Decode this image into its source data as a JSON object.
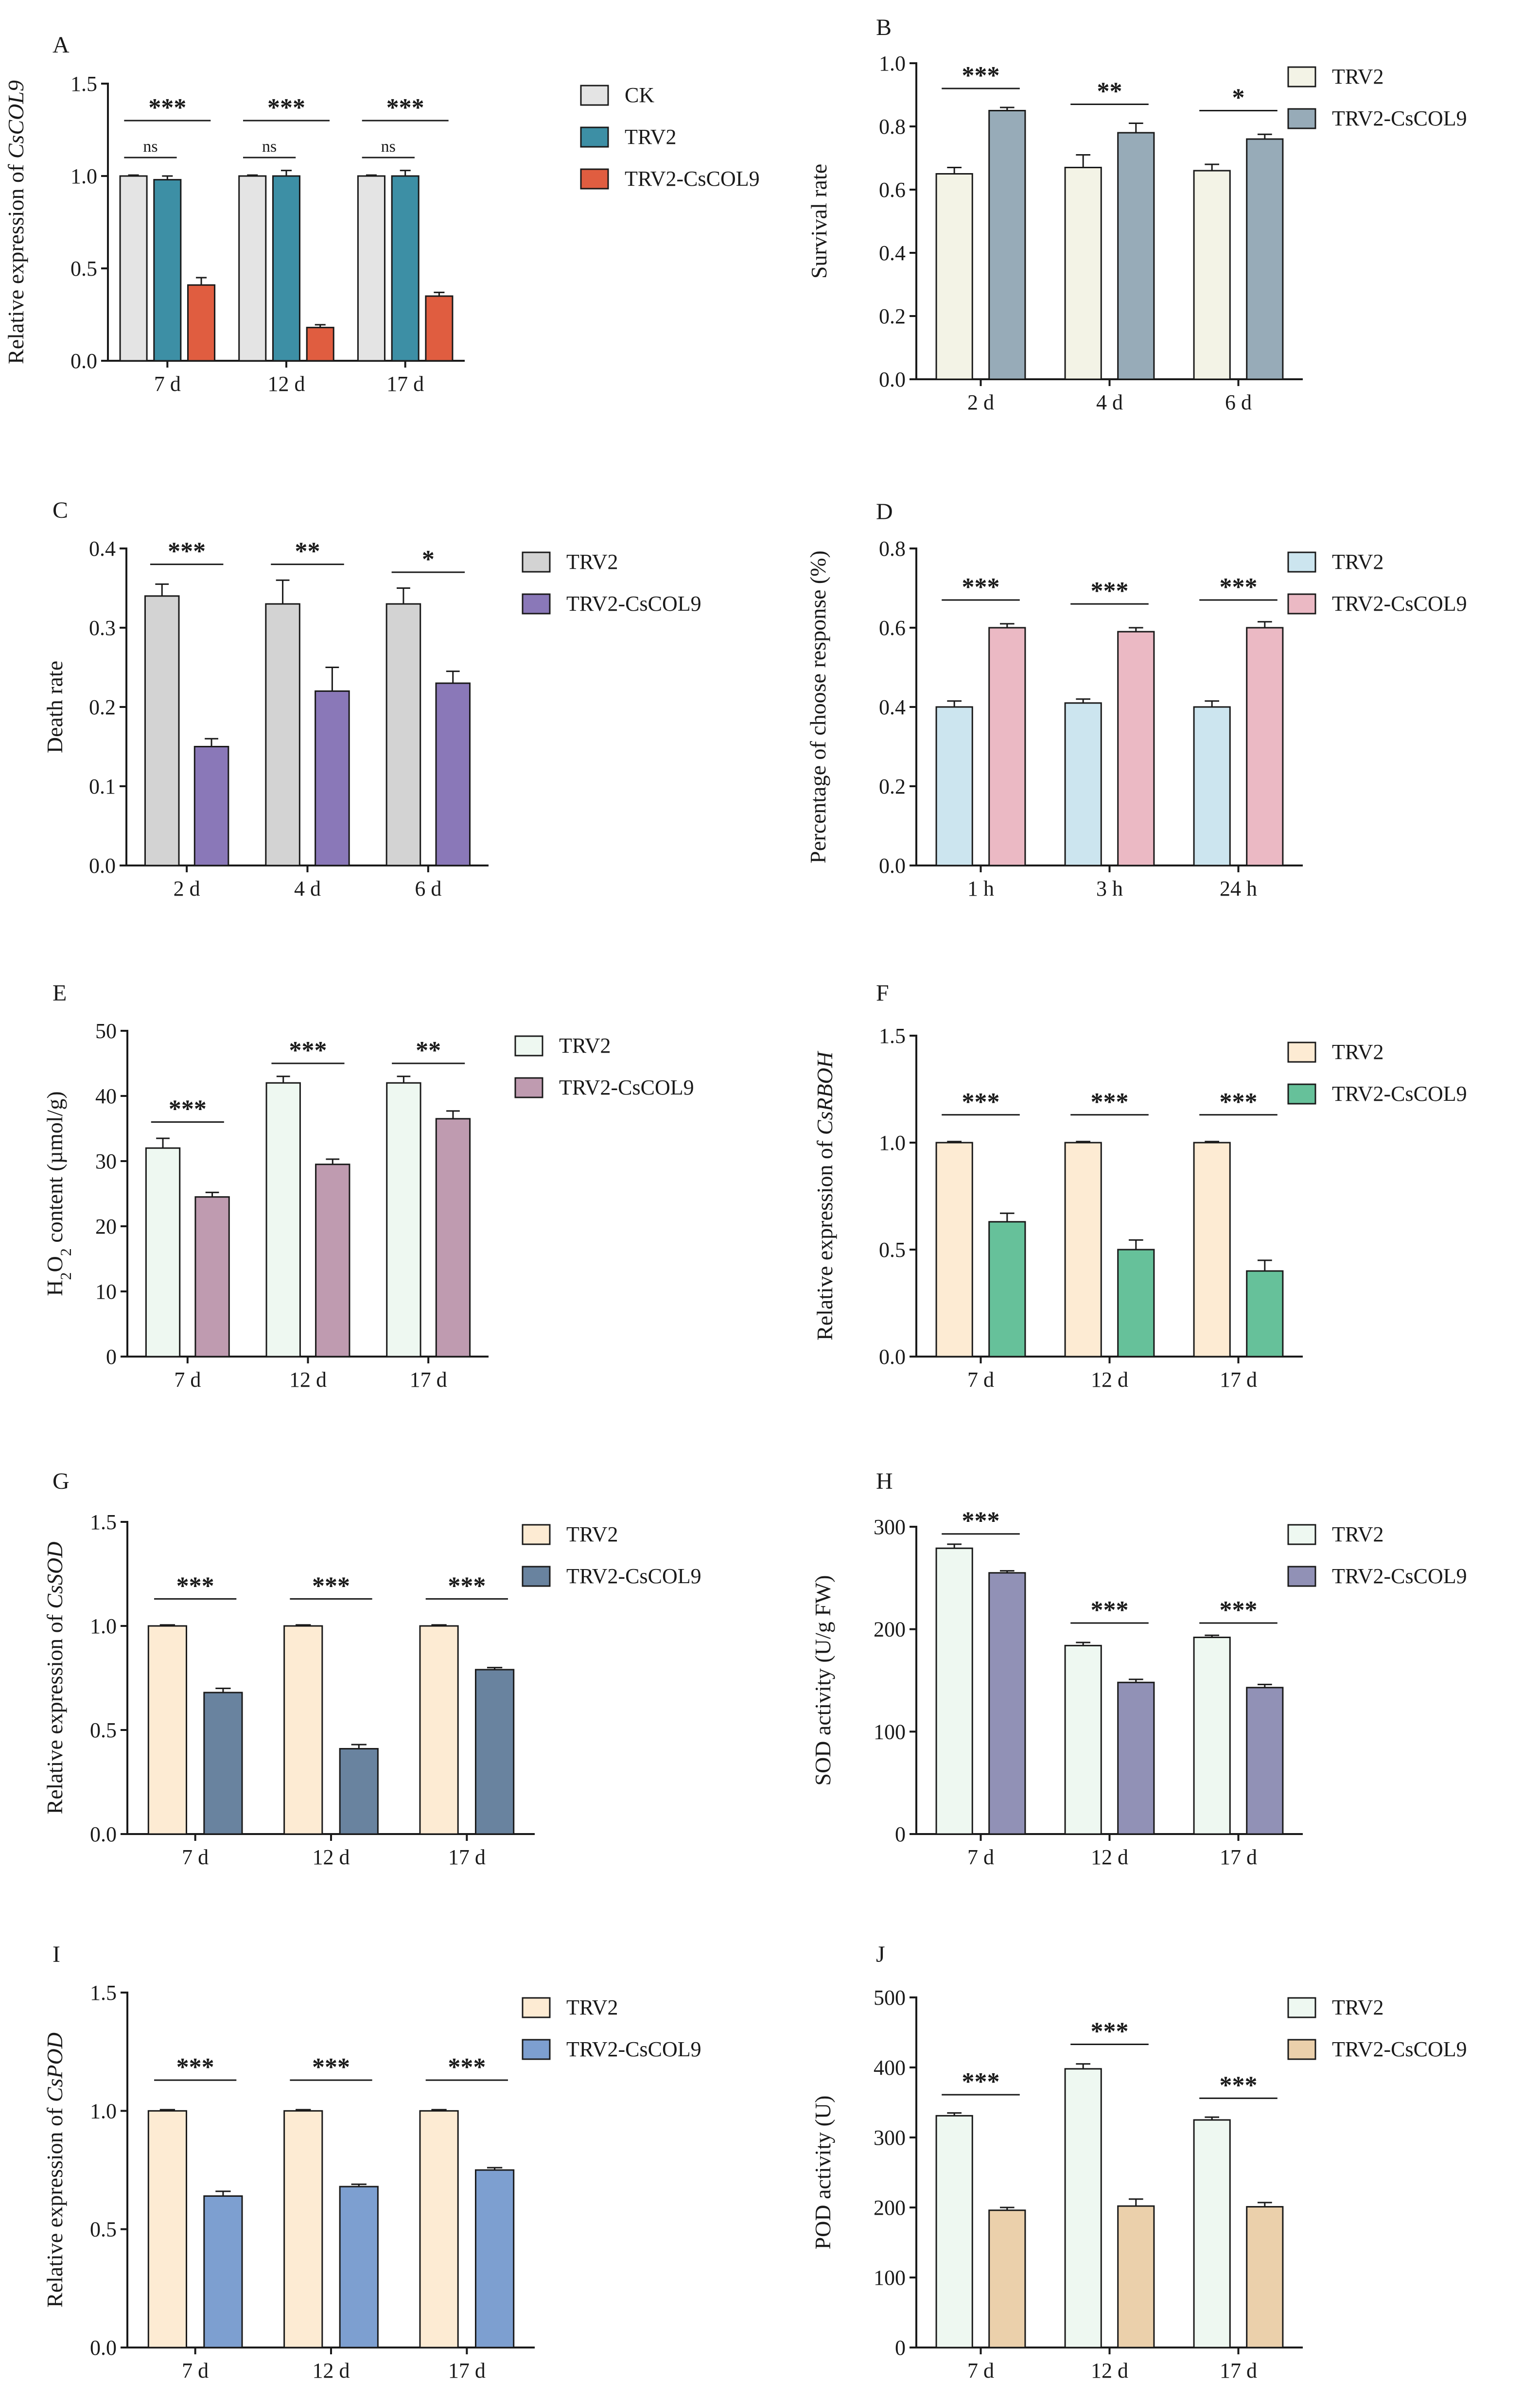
{
  "chart_data": [
    {
      "panel": "A",
      "type": "bar",
      "ylabel": "Relative expression of ",
      "ylabel_italic": "CsCOL9",
      "ylim": [
        0,
        1.5
      ],
      "yticks": [
        0.0,
        0.5,
        1.0,
        1.5
      ],
      "tick_decimals": 1,
      "categories": [
        "7 d",
        "12 d",
        "17 d"
      ],
      "series": [
        {
          "name": "CK",
          "color": "#e4e4e4",
          "values": [
            1.0,
            1.0,
            1.0
          ],
          "errors": [
            0.005,
            0.005,
            0.005
          ]
        },
        {
          "name": "TRV2",
          "color": "#3d8fa5",
          "values": [
            0.98,
            1.0,
            1.0
          ],
          "errors": [
            0.02,
            0.03,
            0.03
          ]
        },
        {
          "name": "TRV2-CsCOL9",
          "color": "#e05d40",
          "values": [
            0.41,
            0.18,
            0.35
          ],
          "errors": [
            0.04,
            0.015,
            0.02
          ]
        }
      ],
      "annotations": [
        {
          "category": 0,
          "from": 0,
          "to": 2,
          "text": "***",
          "y": 1.3
        },
        {
          "category": 0,
          "from": 0,
          "to": 1,
          "text": "ns",
          "y": 1.1
        },
        {
          "category": 1,
          "from": 0,
          "to": 2,
          "text": "***",
          "y": 1.3
        },
        {
          "category": 1,
          "from": 0,
          "to": 1,
          "text": "ns",
          "y": 1.1
        },
        {
          "category": 2,
          "from": 0,
          "to": 2,
          "text": "***",
          "y": 1.3
        },
        {
          "category": 2,
          "from": 0,
          "to": 1,
          "text": "ns",
          "y": 1.1
        }
      ],
      "legend": "right"
    },
    {
      "panel": "B",
      "type": "bar",
      "ylabel": "Survival rate",
      "ylim": [
        0,
        1.0
      ],
      "yticks": [
        0.0,
        0.2,
        0.4,
        0.6,
        0.8,
        1.0
      ],
      "tick_decimals": 1,
      "categories": [
        "2 d",
        "4 d",
        "6 d"
      ],
      "series": [
        {
          "name": "TRV2",
          "color": "#f3f3e6",
          "values": [
            0.65,
            0.67,
            0.66
          ],
          "errors": [
            0.02,
            0.04,
            0.02
          ]
        },
        {
          "name": "TRV2-CsCOL9",
          "color": "#97abb8",
          "values": [
            0.85,
            0.78,
            0.76
          ],
          "errors": [
            0.01,
            0.03,
            0.015
          ]
        }
      ],
      "annotations": [
        {
          "category": 0,
          "from": 0,
          "to": 1,
          "text": "***",
          "y": 0.92
        },
        {
          "category": 1,
          "from": 0,
          "to": 1,
          "text": "**",
          "y": 0.87
        },
        {
          "category": 2,
          "from": 0,
          "to": 1,
          "text": "*",
          "y": 0.85
        }
      ],
      "legend": "right"
    },
    {
      "panel": "C",
      "type": "bar",
      "ylabel": "Death rate",
      "ylim": [
        0,
        0.4
      ],
      "yticks": [
        0.0,
        0.1,
        0.2,
        0.3,
        0.4
      ],
      "tick_decimals": 1,
      "categories": [
        "2 d",
        "4 d",
        "6 d"
      ],
      "series": [
        {
          "name": "TRV2",
          "color": "#d3d3d3",
          "values": [
            0.34,
            0.33,
            0.33
          ],
          "errors": [
            0.015,
            0.03,
            0.02
          ]
        },
        {
          "name": "TRV2-CsCOL9",
          "color": "#8a78b8",
          "values": [
            0.15,
            0.22,
            0.23
          ],
          "errors": [
            0.01,
            0.03,
            0.015
          ]
        }
      ],
      "annotations": [
        {
          "category": 0,
          "from": 0,
          "to": 1,
          "text": "***",
          "y": 0.38
        },
        {
          "category": 1,
          "from": 0,
          "to": 1,
          "text": "**",
          "y": 0.38
        },
        {
          "category": 2,
          "from": 0,
          "to": 1,
          "text": "*",
          "y": 0.37
        }
      ],
      "legend": "right"
    },
    {
      "panel": "D",
      "type": "bar",
      "ylabel": "Percentage of choose response (%)",
      "ylim": [
        0,
        0.8
      ],
      "yticks": [
        0.0,
        0.2,
        0.4,
        0.6,
        0.8
      ],
      "tick_decimals": 1,
      "categories": [
        "1 h",
        "3 h",
        "24 h"
      ],
      "series": [
        {
          "name": "TRV2",
          "color": "#cce5ef",
          "values": [
            0.4,
            0.41,
            0.4
          ],
          "errors": [
            0.015,
            0.01,
            0.015
          ]
        },
        {
          "name": "TRV2-CsCOL9",
          "color": "#ebb9c4",
          "values": [
            0.6,
            0.59,
            0.6
          ],
          "errors": [
            0.01,
            0.01,
            0.015
          ]
        }
      ],
      "annotations": [
        {
          "category": 0,
          "from": 0,
          "to": 1,
          "text": "***",
          "y": 0.67
        },
        {
          "category": 1,
          "from": 0,
          "to": 1,
          "text": "***",
          "y": 0.66
        },
        {
          "category": 2,
          "from": 0,
          "to": 1,
          "text": "***",
          "y": 0.67
        }
      ],
      "legend": "right"
    },
    {
      "panel": "E",
      "type": "bar",
      "ylabel_parts": [
        "H",
        "2",
        "O",
        "2",
        " content (µmol/g)"
      ],
      "ylim": [
        0,
        50
      ],
      "yticks": [
        0,
        10,
        20,
        30,
        40,
        50
      ],
      "tick_decimals": 0,
      "categories": [
        "7 d",
        "12 d",
        "17 d"
      ],
      "series": [
        {
          "name": "TRV2",
          "color": "#eef8f1",
          "values": [
            32,
            42,
            42
          ],
          "errors": [
            1.5,
            1,
            1
          ]
        },
        {
          "name": "TRV2-CsCOL9",
          "color": "#bf9bb0",
          "values": [
            24.5,
            29.5,
            36.5
          ],
          "errors": [
            0.7,
            0.8,
            1.2
          ]
        }
      ],
      "annotations": [
        {
          "category": 0,
          "from": 0,
          "to": 1,
          "text": "***",
          "y": 36
        },
        {
          "category": 1,
          "from": 0,
          "to": 1,
          "text": "***",
          "y": 45
        },
        {
          "category": 2,
          "from": 0,
          "to": 1,
          "text": "**",
          "y": 45
        }
      ],
      "legend": "right"
    },
    {
      "panel": "F",
      "type": "bar",
      "ylabel": "Relative expression of ",
      "ylabel_italic": "CsRBOH",
      "ylim": [
        0,
        1.5
      ],
      "yticks": [
        0.0,
        0.5,
        1.0,
        1.5
      ],
      "tick_decimals": 1,
      "categories": [
        "7 d",
        "12 d",
        "17 d"
      ],
      "series": [
        {
          "name": "TRV2",
          "color": "#fdebd3",
          "values": [
            1.0,
            1.0,
            1.0
          ],
          "errors": [
            0.005,
            0.005,
            0.005
          ]
        },
        {
          "name": "TRV2-CsCOL9",
          "color": "#66c19a",
          "values": [
            0.63,
            0.5,
            0.4
          ],
          "errors": [
            0.04,
            0.045,
            0.05
          ]
        }
      ],
      "annotations": [
        {
          "category": 0,
          "from": 0,
          "to": 1,
          "text": "***",
          "y": 1.13
        },
        {
          "category": 1,
          "from": 0,
          "to": 1,
          "text": "***",
          "y": 1.13
        },
        {
          "category": 2,
          "from": 0,
          "to": 1,
          "text": "***",
          "y": 1.13
        }
      ],
      "legend": "right"
    },
    {
      "panel": "G",
      "type": "bar",
      "ylabel": "Relative expression of ",
      "ylabel_italic": "CsSOD",
      "ylim": [
        0,
        1.5
      ],
      "yticks": [
        0.0,
        0.5,
        1.0,
        1.5
      ],
      "tick_decimals": 1,
      "categories": [
        "7 d",
        "12 d",
        "17 d"
      ],
      "series": [
        {
          "name": "TRV2",
          "color": "#fdebd3",
          "values": [
            1.0,
            1.0,
            1.0
          ],
          "errors": [
            0.005,
            0.005,
            0.005
          ]
        },
        {
          "name": "TRV2-CsCOL9",
          "color": "#69839f",
          "values": [
            0.68,
            0.41,
            0.79
          ],
          "errors": [
            0.02,
            0.02,
            0.01
          ]
        }
      ],
      "annotations": [
        {
          "category": 0,
          "from": 0,
          "to": 1,
          "text": "***",
          "y": 1.13
        },
        {
          "category": 1,
          "from": 0,
          "to": 1,
          "text": "***",
          "y": 1.13
        },
        {
          "category": 2,
          "from": 0,
          "to": 1,
          "text": "***",
          "y": 1.13
        }
      ],
      "legend": "right"
    },
    {
      "panel": "H",
      "type": "bar",
      "ylabel": "SOD activity (U/g FW)",
      "ylim": [
        0,
        300
      ],
      "yticks": [
        0,
        100,
        200,
        300
      ],
      "tick_decimals": 0,
      "categories": [
        "7 d",
        "12 d",
        "17 d"
      ],
      "series": [
        {
          "name": "TRV2",
          "color": "#eef8f1",
          "values": [
            279,
            184,
            192
          ],
          "errors": [
            4,
            3,
            2
          ]
        },
        {
          "name": "TRV2-CsCOL9",
          "color": "#9191b6",
          "values": [
            255,
            148,
            143
          ],
          "errors": [
            2,
            3,
            3
          ]
        }
      ],
      "annotations": [
        {
          "category": 0,
          "from": 0,
          "to": 1,
          "text": "***",
          "y": 293
        },
        {
          "category": 1,
          "from": 0,
          "to": 1,
          "text": "***",
          "y": 206
        },
        {
          "category": 2,
          "from": 0,
          "to": 1,
          "text": "***",
          "y": 206
        }
      ],
      "legend": "right"
    },
    {
      "panel": "I",
      "type": "bar",
      "ylabel": "Relative expression of ",
      "ylabel_italic": "CsPOD",
      "ylim": [
        0,
        1.5
      ],
      "yticks": [
        0.0,
        0.5,
        1.0,
        1.5
      ],
      "tick_decimals": 1,
      "categories": [
        "7 d",
        "12 d",
        "17 d"
      ],
      "series": [
        {
          "name": "TRV2",
          "color": "#fdebd3",
          "values": [
            1.0,
            1.0,
            1.0
          ],
          "errors": [
            0.005,
            0.005,
            0.005
          ]
        },
        {
          "name": "TRV2-CsCOL9",
          "color": "#7d9fd0",
          "values": [
            0.64,
            0.68,
            0.75
          ],
          "errors": [
            0.02,
            0.01,
            0.01
          ]
        }
      ],
      "annotations": [
        {
          "category": 0,
          "from": 0,
          "to": 1,
          "text": "***",
          "y": 1.13
        },
        {
          "category": 1,
          "from": 0,
          "to": 1,
          "text": "***",
          "y": 1.13
        },
        {
          "category": 2,
          "from": 0,
          "to": 1,
          "text": "***",
          "y": 1.13
        }
      ],
      "legend": "right"
    },
    {
      "panel": "J",
      "type": "bar",
      "ylabel": "POD activity (U)",
      "ylim": [
        0,
        500
      ],
      "yticks": [
        0,
        100,
        200,
        300,
        400,
        500
      ],
      "tick_decimals": 0,
      "categories": [
        "7 d",
        "12 d",
        "17 d"
      ],
      "series": [
        {
          "name": "TRV2",
          "color": "#eef8f1",
          "values": [
            331,
            398,
            325
          ],
          "errors": [
            4,
            7,
            4
          ]
        },
        {
          "name": "TRV2-CsCOL9",
          "color": "#ebd0ab",
          "values": [
            196,
            202,
            201
          ],
          "errors": [
            4,
            10,
            6
          ]
        }
      ],
      "annotations": [
        {
          "category": 0,
          "from": 0,
          "to": 1,
          "text": "***",
          "y": 361
        },
        {
          "category": 1,
          "from": 0,
          "to": 1,
          "text": "***",
          "y": 433
        },
        {
          "category": 2,
          "from": 0,
          "to": 1,
          "text": "***",
          "y": 356
        }
      ],
      "legend": "right"
    }
  ]
}
